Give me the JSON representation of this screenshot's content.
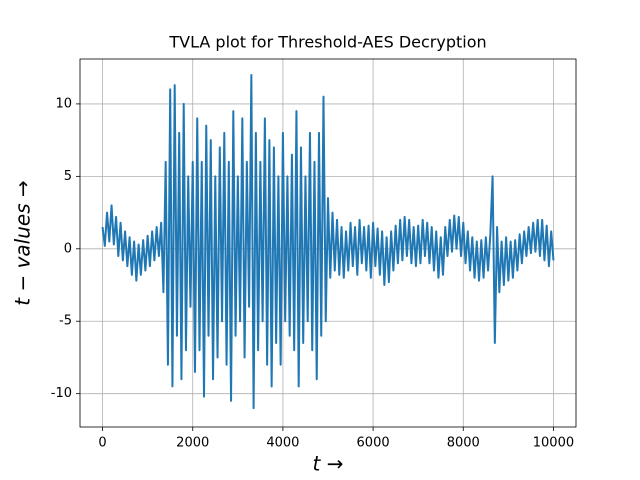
{
  "chart_data": {
    "type": "line",
    "title": "TVLA plot for Threshold-AES Decryption",
    "x_label": "t →",
    "y_label": "t − values →",
    "x": [
      0,
      50,
      100,
      150,
      200,
      250,
      300,
      350,
      400,
      450,
      500,
      550,
      600,
      650,
      700,
      750,
      800,
      850,
      900,
      950,
      1000,
      1050,
      1100,
      1150,
      1200,
      1250,
      1300,
      1350,
      1400,
      1450,
      1500,
      1550,
      1600,
      1650,
      1700,
      1750,
      1800,
      1850,
      1900,
      1950,
      2000,
      2050,
      2100,
      2150,
      2200,
      2250,
      2300,
      2350,
      2400,
      2450,
      2500,
      2550,
      2600,
      2650,
      2700,
      2750,
      2800,
      2850,
      2900,
      2950,
      3000,
      3050,
      3100,
      3150,
      3200,
      3250,
      3300,
      3350,
      3400,
      3450,
      3500,
      3550,
      3600,
      3650,
      3700,
      3750,
      3800,
      3850,
      3900,
      3950,
      4000,
      4050,
      4100,
      4150,
      4200,
      4250,
      4300,
      4350,
      4400,
      4450,
      4500,
      4550,
      4600,
      4650,
      4700,
      4750,
      4800,
      4850,
      4900,
      4950,
      5000,
      5050,
      5100,
      5150,
      5200,
      5250,
      5300,
      5350,
      5400,
      5450,
      5500,
      5550,
      5600,
      5650,
      5700,
      5750,
      5800,
      5850,
      5900,
      5950,
      6000,
      6050,
      6100,
      6150,
      6200,
      6250,
      6300,
      6350,
      6400,
      6450,
      6500,
      6550,
      6600,
      6650,
      6700,
      6750,
      6800,
      6850,
      6900,
      6950,
      7000,
      7050,
      7100,
      7150,
      7200,
      7250,
      7300,
      7350,
      7400,
      7450,
      7500,
      7550,
      7600,
      7650,
      7700,
      7750,
      7800,
      7850,
      7900,
      7950,
      8000,
      8050,
      8100,
      8150,
      8200,
      8250,
      8300,
      8350,
      8400,
      8450,
      8500,
      8550,
      8600,
      8650,
      8700,
      8750,
      8800,
      8850,
      8900,
      8950,
      9000,
      9050,
      9100,
      9150,
      9200,
      9250,
      9300,
      9350,
      9400,
      9450,
      9500,
      9550,
      9600,
      9650,
      9700,
      9750,
      9800,
      9850,
      9900,
      9950,
      10000
    ],
    "series": [
      {
        "color": "#1f77b4",
        "values": [
          1.5,
          0.2,
          2.5,
          0.5,
          3,
          0.3,
          2.2,
          -0.5,
          1.8,
          -0.8,
          1.2,
          -1.2,
          0.8,
          -1.8,
          0.5,
          -2.2,
          0.3,
          -1.8,
          0.6,
          -1.5,
          0.9,
          -1.2,
          1.2,
          -0.8,
          1.5,
          -0.5,
          1.8,
          -3,
          6,
          -8,
          11,
          -9.5,
          11.3,
          -6,
          8,
          -9,
          10,
          -7,
          5,
          -4,
          6,
          -8.5,
          9,
          -7,
          6,
          -10.2,
          8.5,
          -6,
          7.5,
          -9,
          5,
          -7.5,
          7,
          -5,
          8,
          -8,
          6,
          -10.5,
          9.5,
          -6,
          5,
          -5,
          9,
          -7.5,
          6,
          -4,
          12,
          -11,
          8,
          -7,
          6,
          -5,
          9,
          -8,
          7.5,
          -9.5,
          7,
          -6.5,
          5,
          -8,
          8,
          -5,
          5,
          -6,
          6.5,
          -7,
          9.5,
          -9.5,
          7,
          -6.5,
          5,
          -5,
          8,
          -7,
          6,
          -9,
          8,
          -6,
          10.5,
          -5,
          3.5,
          -2,
          2.5,
          -1.5,
          2,
          -1.8,
          1.5,
          -2,
          1.2,
          -1.5,
          1.8,
          -1.2,
          1.5,
          -1.8,
          2,
          -1,
          1.5,
          -1.5,
          1.6,
          -2,
          1.8,
          -1.2,
          1.4,
          -1.8,
          1.2,
          -2.5,
          0.8,
          -2.3,
          1.2,
          -1.5,
          1.6,
          -1,
          2,
          -0.8,
          2.2,
          -0.5,
          2,
          -1,
          1.5,
          -1.2,
          1.6,
          -1,
          2,
          -0.5,
          1.8,
          -1,
          1.5,
          -1.5,
          1.2,
          -2,
          0.8,
          -1.8,
          1.5,
          -0.5,
          2,
          -0.2,
          2.3,
          0,
          2.2,
          -0.5,
          1.8,
          -1,
          1.2,
          -1.5,
          0.8,
          -2,
          0.5,
          -2.2,
          0.6,
          -2,
          0.8,
          -1.5,
          1,
          5,
          -6.5,
          1.5,
          -3,
          0.5,
          -2.5,
          0.8,
          -2.2,
          0.5,
          -2,
          0.6,
          -1.5,
          1,
          -1,
          1.2,
          -0.5,
          1.5,
          -0.3,
          1.8,
          -0.2,
          2,
          -0.5,
          2,
          -0.8,
          1.6,
          -1.2,
          1.2,
          -0.8
        ]
      }
    ],
    "xlim": [
      -500,
      10500
    ],
    "ylim": [
      -12.3,
      13.1
    ],
    "xticks": [
      0,
      2000,
      4000,
      6000,
      8000,
      10000
    ],
    "yticks": [
      -10,
      -5,
      0,
      5,
      10
    ],
    "grid": true
  }
}
